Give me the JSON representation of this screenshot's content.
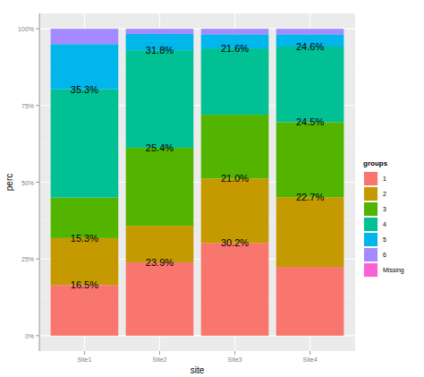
{
  "chart_data": {
    "type": "bar",
    "stacked": true,
    "data_labels": true,
    "grid": true,
    "legend": "right",
    "x_label": "site",
    "y_label": "perc",
    "legend_title": "groups",
    "categories": [
      "Site1",
      "Site2",
      "Site3",
      "Site4"
    ],
    "ylim": [
      -5,
      105
    ],
    "yticks": [
      {
        "value": 0,
        "label": "0%"
      },
      {
        "value": 25,
        "label": "25%"
      },
      {
        "value": 50,
        "label": "50%"
      },
      {
        "value": 75,
        "label": "75%"
      },
      {
        "value": 100,
        "label": "100%"
      }
    ],
    "series": [
      {
        "name": "1",
        "color": "#F8766D",
        "values": [
          16.5,
          23.9,
          30.2,
          22.4
        ],
        "value_labels": [
          "16.5%",
          "23.9%",
          "30.2%",
          null
        ]
      },
      {
        "name": "2",
        "color": "#C49A00",
        "values": [
          15.3,
          11.9,
          21.0,
          22.7
        ],
        "value_labels": [
          "15.3%",
          null,
          "21.0%",
          "22.7%"
        ]
      },
      {
        "name": "3",
        "color": "#53B400",
        "values": [
          13.2,
          25.4,
          20.8,
          24.5
        ],
        "value_labels": [
          null,
          "25.4%",
          null,
          "24.5%"
        ]
      },
      {
        "name": "4",
        "color": "#00C094",
        "values": [
          35.3,
          31.8,
          21.6,
          24.6
        ],
        "value_labels": [
          "35.3%",
          "31.8%",
          "21.6%",
          "24.6%"
        ]
      },
      {
        "name": "5",
        "color": "#00B6EB",
        "values": [
          14.7,
          5.3,
          4.6,
          4.0
        ],
        "value_labels": [
          null,
          null,
          null,
          null
        ]
      },
      {
        "name": "6",
        "color": "#A58AFF",
        "values": [
          5.0,
          1.7,
          1.8,
          1.8
        ],
        "value_labels": [
          null,
          null,
          null,
          null
        ]
      },
      {
        "name": "Missing",
        "color": "#FB61D7",
        "values": [
          0,
          0,
          0,
          0
        ],
        "value_labels": [
          null,
          null,
          null,
          null
        ]
      }
    ]
  }
}
